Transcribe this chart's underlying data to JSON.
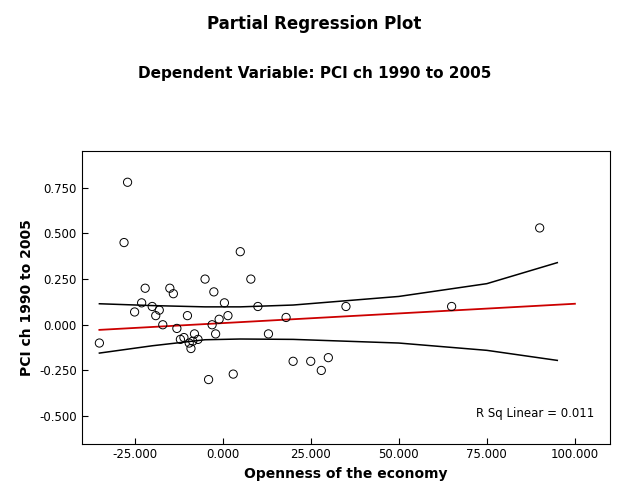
{
  "title": "Partial Regression Plot",
  "subtitle": "Dependent Variable: PCI ch 1990 to 2005",
  "xlabel": "Openness of the economy",
  "ylabel": "PCI ch 1990 to 2005",
  "annotation": "R Sq Linear = 0.011",
  "xlim": [
    -40000,
    110000
  ],
  "ylim": [
    -0.65,
    0.95
  ],
  "xticks": [
    -25000,
    0,
    25000,
    50000,
    75000,
    100000
  ],
  "xtick_labels": [
    "-25.000",
    "0.000",
    "25.000",
    "50.000",
    "75.000",
    "100.000"
  ],
  "yticks": [
    -0.5,
    -0.25,
    0.0,
    0.25,
    0.5,
    0.75
  ],
  "scatter_x": [
    -35000,
    -28000,
    -27000,
    -25000,
    -23000,
    -22000,
    -20000,
    -19000,
    -18000,
    -17000,
    -15000,
    -14000,
    -13000,
    -12000,
    -11000,
    -10000,
    -9500,
    -9000,
    -8500,
    -8000,
    -7000,
    -5000,
    -4000,
    -3000,
    -2500,
    -2000,
    -1000,
    500,
    1500,
    3000,
    5000,
    8000,
    10000,
    13000,
    18000,
    20000,
    25000,
    28000,
    30000,
    35000,
    65000,
    90000
  ],
  "scatter_y": [
    -0.1,
    0.45,
    0.78,
    0.07,
    0.12,
    0.2,
    0.1,
    0.05,
    0.08,
    0.0,
    0.2,
    0.17,
    -0.02,
    -0.08,
    -0.07,
    0.05,
    -0.1,
    -0.13,
    -0.09,
    -0.05,
    -0.08,
    0.25,
    -0.3,
    0.0,
    0.18,
    -0.05,
    0.03,
    0.12,
    0.05,
    -0.27,
    0.4,
    0.25,
    0.1,
    -0.05,
    0.04,
    -0.2,
    -0.2,
    -0.25,
    -0.18,
    0.1,
    0.1,
    0.53
  ],
  "reg_line_color": "#cc0000",
  "reg_line_x": [
    -35000,
    100000
  ],
  "reg_line_y": [
    -0.028,
    0.115
  ],
  "ci_upper_x": [
    -35000,
    -20000,
    -5000,
    5000,
    20000,
    50000,
    75000,
    95000
  ],
  "ci_upper_y": [
    0.115,
    0.105,
    0.098,
    0.098,
    0.108,
    0.155,
    0.225,
    0.34
  ],
  "ci_lower_x": [
    -35000,
    -20000,
    -5000,
    5000,
    20000,
    50000,
    75000,
    95000
  ],
  "ci_lower_y": [
    -0.155,
    -0.115,
    -0.082,
    -0.078,
    -0.08,
    -0.1,
    -0.14,
    -0.195
  ],
  "background_color": "#ffffff",
  "scatter_facecolor": "none",
  "scatter_edgecolor": "#000000",
  "scatter_size": 35,
  "title_fontsize": 12,
  "subtitle_fontsize": 11,
  "label_fontsize": 10,
  "tick_fontsize": 8.5
}
